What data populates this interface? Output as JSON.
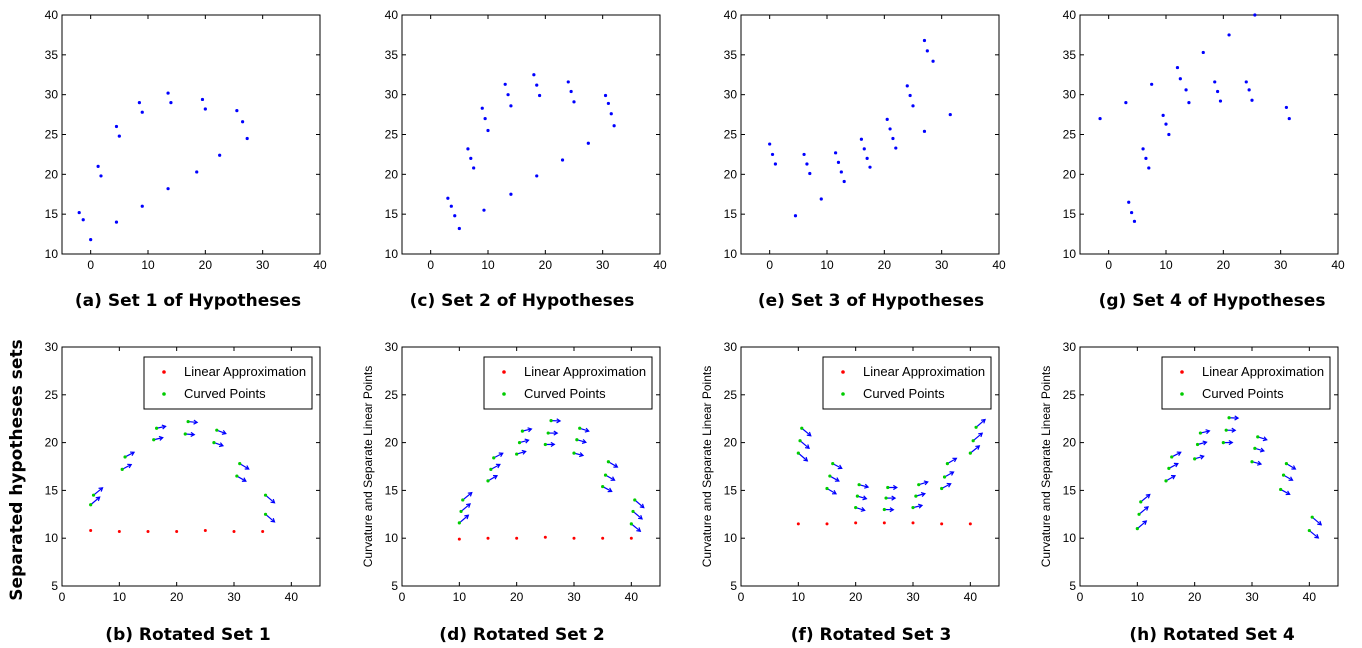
{
  "side_label": "Separated hypotheses sets",
  "colors": {
    "hypothesis": "#0000ff",
    "linear": "#ff0000",
    "curved": "#00cc00",
    "arrow": "#0000ff"
  },
  "chart_data": [
    {
      "type": "scatter",
      "caption": "(a) Set 1 of Hypotheses",
      "xlim": [
        -5,
        40
      ],
      "ylim": [
        10,
        40
      ],
      "xticks": [
        0,
        10,
        20,
        30,
        40
      ],
      "yticks": [
        10,
        15,
        20,
        25,
        30,
        35,
        40
      ],
      "ylabel": "",
      "points": [
        [
          -2,
          15.2
        ],
        [
          -1.3,
          14.3
        ],
        [
          0,
          11.8
        ],
        [
          1.3,
          21
        ],
        [
          1.8,
          19.8
        ],
        [
          4.5,
          26
        ],
        [
          5,
          24.8
        ],
        [
          4.5,
          14
        ],
        [
          8.5,
          29
        ],
        [
          9,
          27.8
        ],
        [
          9,
          16
        ],
        [
          13.5,
          30.2
        ],
        [
          14,
          29
        ],
        [
          13.5,
          18.2
        ],
        [
          18.5,
          20.3
        ],
        [
          19.5,
          29.4
        ],
        [
          20,
          28.2
        ],
        [
          22.5,
          22.4
        ],
        [
          25.5,
          28
        ],
        [
          26.5,
          26.6
        ],
        [
          27.3,
          24.5
        ]
      ]
    },
    {
      "type": "scatter",
      "caption": "(c) Set 2 of Hypotheses",
      "xlim": [
        -5,
        40
      ],
      "ylim": [
        10,
        40
      ],
      "xticks": [
        0,
        10,
        20,
        30,
        40
      ],
      "yticks": [
        10,
        15,
        20,
        25,
        30,
        35,
        40
      ],
      "ylabel": "",
      "points": [
        [
          3,
          17
        ],
        [
          3.6,
          16
        ],
        [
          4.2,
          14.8
        ],
        [
          5,
          13.2
        ],
        [
          6.5,
          23.2
        ],
        [
          7,
          22
        ],
        [
          7.5,
          20.8
        ],
        [
          9,
          28.3
        ],
        [
          9.5,
          27
        ],
        [
          10,
          25.5
        ],
        [
          9.3,
          15.5
        ],
        [
          13,
          31.3
        ],
        [
          13.5,
          30
        ],
        [
          14,
          28.6
        ],
        [
          14,
          17.5
        ],
        [
          18,
          32.5
        ],
        [
          18.5,
          31.2
        ],
        [
          19,
          29.9
        ],
        [
          18.5,
          19.8
        ],
        [
          23,
          21.8
        ],
        [
          24,
          31.6
        ],
        [
          24.5,
          30.4
        ],
        [
          25,
          29.1
        ],
        [
          27.5,
          23.9
        ],
        [
          30.5,
          29.9
        ],
        [
          31,
          28.9
        ],
        [
          31.5,
          27.6
        ],
        [
          32,
          26.1
        ]
      ]
    },
    {
      "type": "scatter",
      "caption": "(e) Set 3 of Hypotheses",
      "xlim": [
        -5,
        40
      ],
      "ylim": [
        10,
        40
      ],
      "xticks": [
        0,
        10,
        20,
        30,
        40
      ],
      "yticks": [
        10,
        15,
        20,
        25,
        30,
        35,
        40
      ],
      "ylabel": "",
      "points": [
        [
          0,
          23.8
        ],
        [
          0.5,
          22.5
        ],
        [
          1,
          21.3
        ],
        [
          4.5,
          14.8
        ],
        [
          6,
          22.5
        ],
        [
          6.5,
          21.3
        ],
        [
          7,
          20.1
        ],
        [
          9,
          16.9
        ],
        [
          11.5,
          22.7
        ],
        [
          12,
          21.5
        ],
        [
          12.5,
          20.3
        ],
        [
          13,
          19.1
        ],
        [
          16,
          24.4
        ],
        [
          16.5,
          23.2
        ],
        [
          17,
          22
        ],
        [
          17.5,
          20.9
        ],
        [
          20.5,
          26.9
        ],
        [
          21,
          25.7
        ],
        [
          21.5,
          24.5
        ],
        [
          22,
          23.3
        ],
        [
          24,
          31.1
        ],
        [
          24.5,
          29.9
        ],
        [
          25,
          28.6
        ],
        [
          27,
          25.4
        ],
        [
          27,
          36.8
        ],
        [
          27.5,
          35.5
        ],
        [
          28.5,
          34.2
        ],
        [
          31.5,
          27.5
        ]
      ]
    },
    {
      "type": "scatter",
      "caption": "(g) Set 4 of Hypotheses",
      "xlim": [
        -5,
        40
      ],
      "ylim": [
        10,
        40
      ],
      "xticks": [
        0,
        10,
        20,
        30,
        40
      ],
      "yticks": [
        10,
        15,
        20,
        25,
        30,
        35,
        40
      ],
      "ylabel": "",
      "points": [
        [
          -1.5,
          27
        ],
        [
          3,
          29
        ],
        [
          3.5,
          16.5
        ],
        [
          4,
          15.2
        ],
        [
          4.5,
          14.1
        ],
        [
          6,
          23.2
        ],
        [
          6.5,
          22
        ],
        [
          7,
          20.8
        ],
        [
          7.5,
          31.3
        ],
        [
          9.5,
          27.4
        ],
        [
          10,
          26.3
        ],
        [
          10.5,
          25
        ],
        [
          12,
          33.4
        ],
        [
          12.5,
          32
        ],
        [
          13.5,
          30.6
        ],
        [
          14,
          29
        ],
        [
          16.5,
          35.3
        ],
        [
          18.5,
          31.6
        ],
        [
          19,
          30.4
        ],
        [
          19.5,
          29.2
        ],
        [
          21,
          37.5
        ],
        [
          24,
          31.6
        ],
        [
          24.5,
          30.6
        ],
        [
          25,
          29.3
        ],
        [
          25.5,
          40
        ],
        [
          31,
          28.4
        ],
        [
          31.5,
          27
        ]
      ]
    },
    {
      "type": "scatter",
      "caption": "(b) Rotated Set 1",
      "xlim": [
        0,
        45
      ],
      "ylim": [
        5,
        30
      ],
      "xticks": [
        0,
        10,
        20,
        30,
        40
      ],
      "yticks": [
        5,
        10,
        15,
        20,
        25,
        30
      ],
      "ylabel": "",
      "legend": [
        "Linear Approximation",
        "Curved Points"
      ],
      "linear": [
        [
          5,
          10.8
        ],
        [
          10,
          10.7
        ],
        [
          15,
          10.7
        ],
        [
          20,
          10.7
        ],
        [
          25,
          10.8
        ],
        [
          30,
          10.7
        ],
        [
          35,
          10.7
        ]
      ],
      "curved": [
        [
          5,
          13.5
        ],
        [
          5.5,
          14.5
        ],
        [
          10.5,
          17.2
        ],
        [
          11,
          18.5
        ],
        [
          16,
          20.3
        ],
        [
          16.5,
          21.5
        ],
        [
          21.5,
          20.9
        ],
        [
          22,
          22.2
        ],
        [
          26.5,
          20
        ],
        [
          27,
          21.3
        ],
        [
          30.5,
          16.5
        ],
        [
          31,
          17.8
        ],
        [
          35.5,
          12.5
        ],
        [
          35.5,
          14.5
        ]
      ]
    },
    {
      "type": "scatter",
      "caption": "(d) Rotated Set 2",
      "xlim": [
        0,
        45
      ],
      "ylim": [
        5,
        30
      ],
      "xticks": [
        0,
        10,
        20,
        30,
        40
      ],
      "yticks": [
        5,
        10,
        15,
        20,
        25,
        30
      ],
      "ylabel": "Curvature and Separate Linear Points",
      "legend": [
        "Linear Approximation",
        "Curved Points"
      ],
      "linear": [
        [
          10,
          9.9
        ],
        [
          15,
          10
        ],
        [
          20,
          10
        ],
        [
          25,
          10.1
        ],
        [
          30,
          10
        ],
        [
          35,
          10
        ],
        [
          40,
          10
        ]
      ],
      "curved": [
        [
          10,
          11.6
        ],
        [
          10.3,
          12.8
        ],
        [
          10.6,
          14
        ],
        [
          15,
          16
        ],
        [
          15.5,
          17.2
        ],
        [
          16,
          18.4
        ],
        [
          20,
          18.8
        ],
        [
          20.5,
          20
        ],
        [
          21,
          21.2
        ],
        [
          25,
          19.8
        ],
        [
          25.5,
          21
        ],
        [
          26,
          22.3
        ],
        [
          30,
          18.9
        ],
        [
          30.5,
          20.3
        ],
        [
          31,
          21.5
        ],
        [
          35,
          15.4
        ],
        [
          35.5,
          16.6
        ],
        [
          36,
          18
        ],
        [
          40,
          11.5
        ],
        [
          40.3,
          12.8
        ],
        [
          40.6,
          14
        ]
      ]
    },
    {
      "type": "scatter",
      "caption": "(f) Rotated Set 3",
      "xlim": [
        0,
        45
      ],
      "ylim": [
        5,
        30
      ],
      "xticks": [
        0,
        10,
        20,
        30,
        40
      ],
      "yticks": [
        5,
        10,
        15,
        20,
        25,
        30
      ],
      "ylabel": "Curvature and Separate Linear Points",
      "legend": [
        "Linear Approximation",
        "Curved Points"
      ],
      "linear": [
        [
          10,
          11.5
        ],
        [
          15,
          11.5
        ],
        [
          20,
          11.6
        ],
        [
          25,
          11.6
        ],
        [
          30,
          11.6
        ],
        [
          35,
          11.5
        ],
        [
          40,
          11.5
        ]
      ],
      "curved": [
        [
          10,
          18.9
        ],
        [
          10.3,
          20.2
        ],
        [
          10.6,
          21.5
        ],
        [
          15,
          15.2
        ],
        [
          15.5,
          16.5
        ],
        [
          16,
          17.8
        ],
        [
          20,
          13.2
        ],
        [
          20.3,
          14.4
        ],
        [
          20.6,
          15.6
        ],
        [
          25,
          13
        ],
        [
          25.3,
          14.2
        ],
        [
          25.6,
          15.3
        ],
        [
          30,
          13.2
        ],
        [
          30.5,
          14.4
        ],
        [
          31,
          15.6
        ],
        [
          35,
          15.2
        ],
        [
          35.5,
          16.4
        ],
        [
          36,
          17.8
        ],
        [
          40,
          18.9
        ],
        [
          40.5,
          20.2
        ],
        [
          41,
          21.6
        ]
      ]
    },
    {
      "type": "scatter",
      "caption": "(h) Rotated Set 4",
      "xlim": [
        0,
        45
      ],
      "ylim": [
        5,
        30
      ],
      "xticks": [
        0,
        10,
        20,
        30,
        40
      ],
      "yticks": [
        5,
        10,
        15,
        20,
        25,
        30
      ],
      "ylabel": "Curvature and Separate Linear Points",
      "legend": [
        "Linear Approximation",
        "Curved Points"
      ],
      "linear": [],
      "curved": [
        [
          10,
          11
        ],
        [
          10.3,
          12.5
        ],
        [
          10.6,
          13.8
        ],
        [
          15,
          16
        ],
        [
          15.5,
          17.3
        ],
        [
          16,
          18.5
        ],
        [
          20,
          18.3
        ],
        [
          20.5,
          19.8
        ],
        [
          21,
          21
        ],
        [
          25,
          20
        ],
        [
          25.5,
          21.3
        ],
        [
          26,
          22.6
        ],
        [
          30,
          18
        ],
        [
          30.5,
          19.4
        ],
        [
          31,
          20.6
        ],
        [
          35,
          15.1
        ],
        [
          35.5,
          16.6
        ],
        [
          36,
          17.8
        ],
        [
          40,
          10.8
        ],
        [
          40.5,
          12.2
        ]
      ]
    }
  ]
}
